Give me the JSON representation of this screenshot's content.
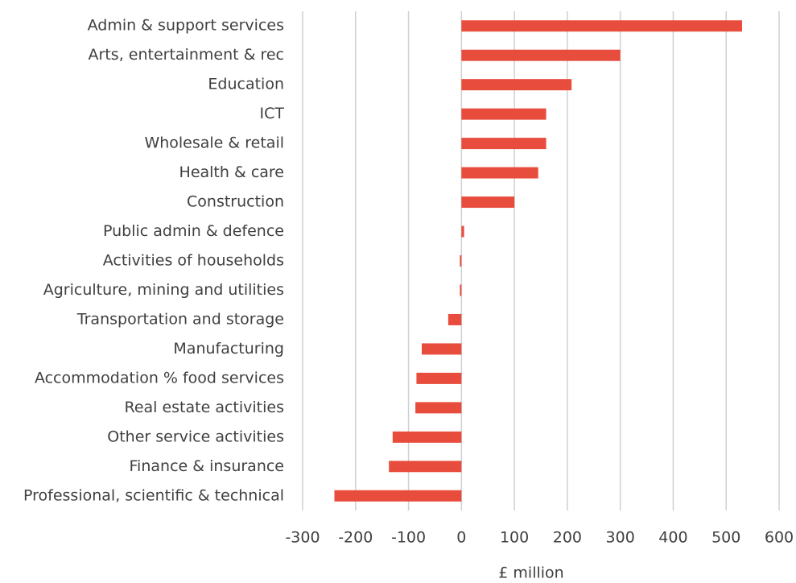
{
  "chart_data": {
    "type": "bar",
    "orientation": "horizontal",
    "categories": [
      "Admin & support services",
      "Arts, entertainment & rec",
      "Education",
      "ICT",
      "Wholesale & retail",
      "Health & care",
      "Construction",
      "Public admin & defence",
      "Activities of households",
      "Agriculture, mining and utilities",
      "Transportation and storage",
      "Manufacturing",
      "Accommodation % food services",
      "Real estate activities",
      "Other service activities",
      "Finance & insurance",
      "Professional, scientific & technical"
    ],
    "values": [
      530,
      300,
      208,
      160,
      160,
      145,
      100,
      5,
      -3,
      -3,
      -25,
      -75,
      -85,
      -87,
      -130,
      -137,
      -240
    ],
    "color": "#e84c3d",
    "xlabel": "£ million",
    "xlim": [
      -300,
      600
    ],
    "xticks": [
      -300,
      -200,
      -100,
      0,
      100,
      200,
      300,
      400,
      500,
      600
    ],
    "grid": true
  }
}
